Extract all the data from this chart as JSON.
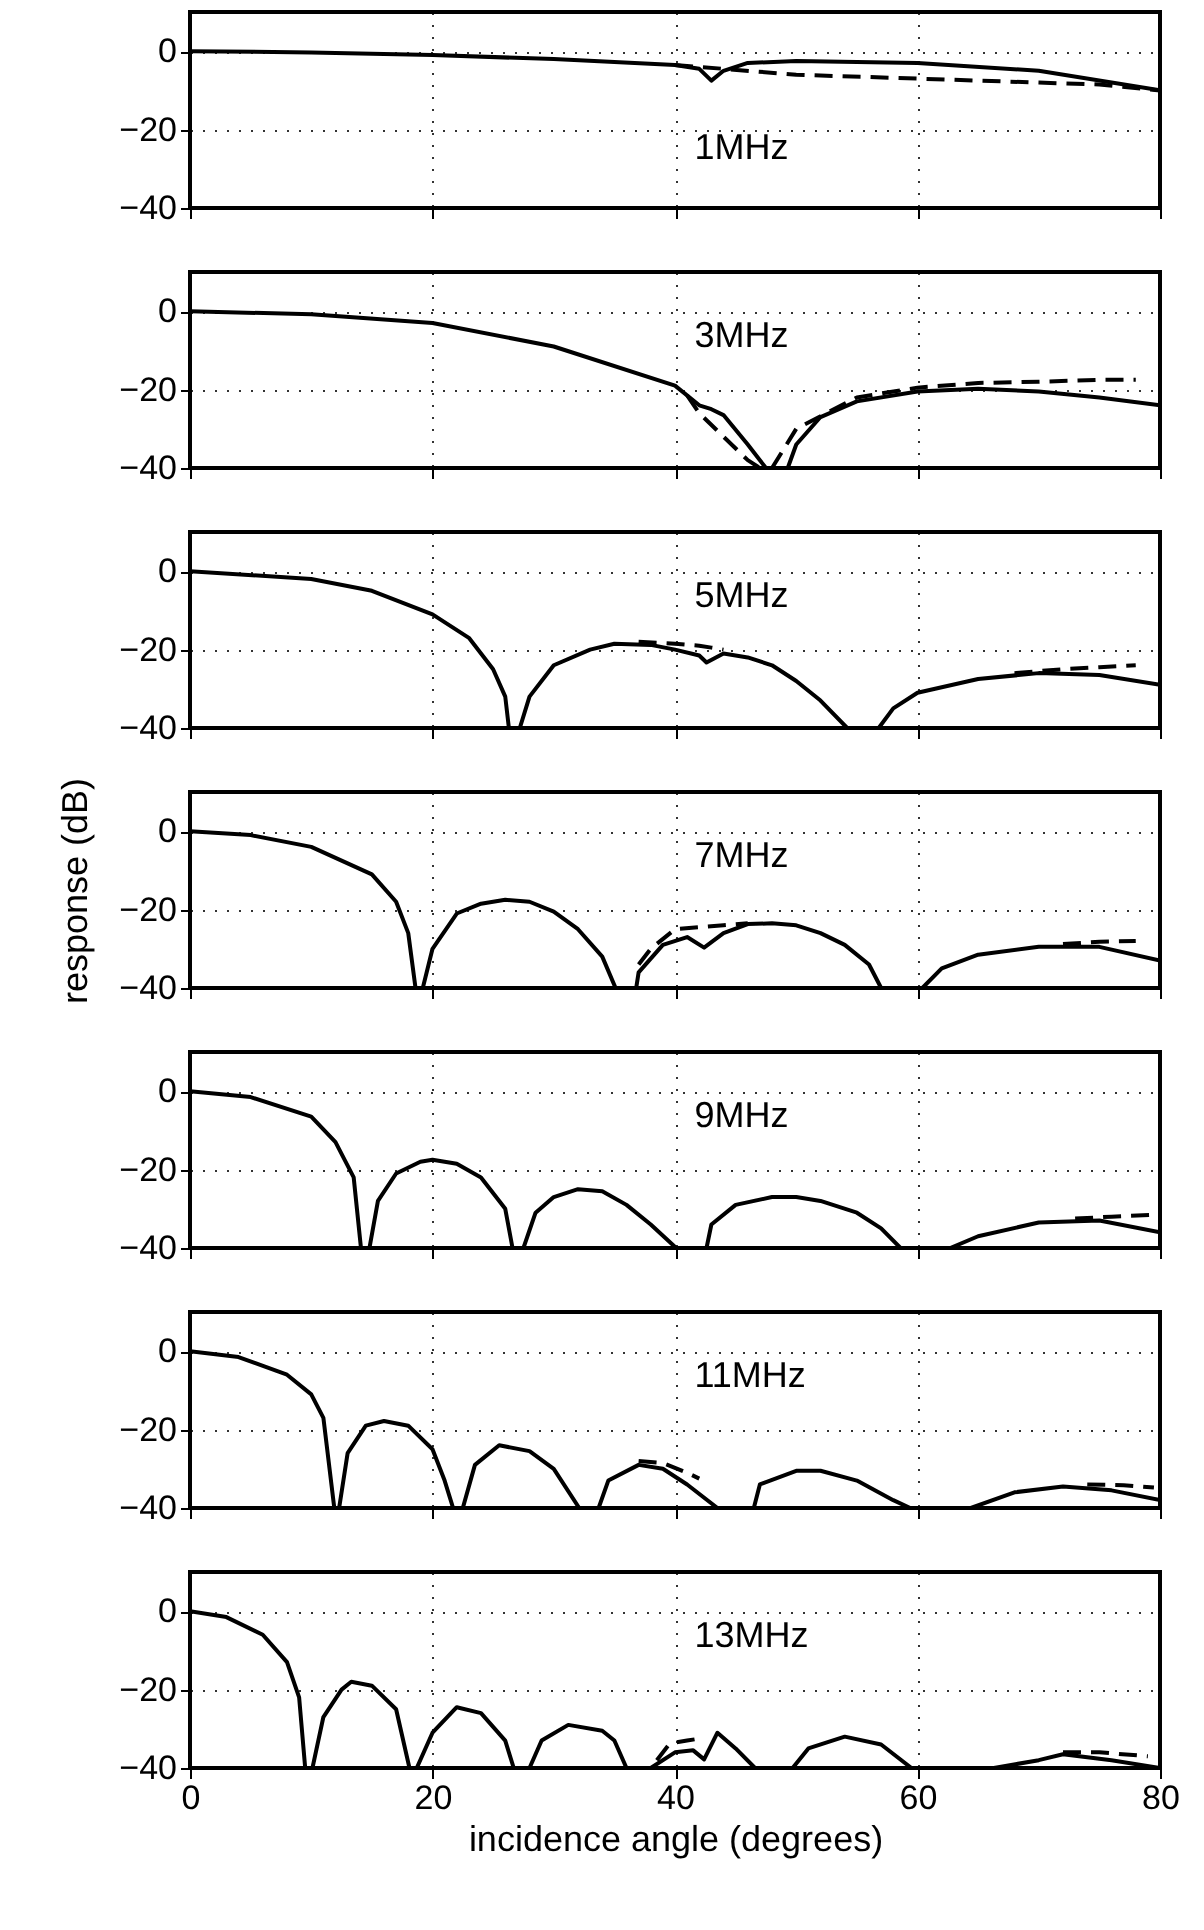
{
  "chart_data": [
    {
      "type": "line",
      "xlim": [
        0,
        80
      ],
      "xticks": [
        0,
        20,
        40,
        60,
        80
      ],
      "ylim": [
        -40,
        10
      ],
      "yticks": [
        -40,
        -20,
        0
      ],
      "grid": true,
      "tick_labels": "y",
      "annotations": [
        "1MHz"
      ],
      "series": [
        {
          "color": "#000000",
          "line_style": "solid",
          "x": [
            0,
            10,
            20,
            30,
            40,
            42,
            43,
            44,
            46,
            50,
            60,
            70,
            80
          ],
          "values": [
            0,
            -0.3,
            -1,
            -2,
            -3.5,
            -4.5,
            -7.5,
            -5,
            -3,
            -2.5,
            -3,
            -5,
            -10
          ]
        },
        {
          "color": "#000000",
          "line_style": "dashed",
          "x": [
            40,
            44,
            50,
            60,
            70,
            75,
            80
          ],
          "values": [
            -3.5,
            -4.5,
            -6,
            -7,
            -8,
            -8.5,
            -10
          ]
        }
      ]
    },
    {
      "type": "line",
      "xlim": [
        0,
        80
      ],
      "xticks": [
        0,
        20,
        40,
        60,
        80
      ],
      "ylim": [
        -40,
        10
      ],
      "yticks": [
        -40,
        -20,
        0
      ],
      "grid": true,
      "tick_labels": "y",
      "annotations": [
        "3MHz"
      ],
      "series": [
        {
          "color": "#000000",
          "line_style": "solid",
          "x": [
            0,
            10,
            20,
            30,
            40,
            42,
            43,
            44,
            46,
            47.5,
            48.5,
            49.3,
            50,
            52,
            55,
            60,
            65,
            70,
            75,
            80
          ],
          "values": [
            0,
            -0.8,
            -3,
            -9,
            -19,
            -24,
            -25,
            -26.5,
            -34,
            -40,
            null,
            -40,
            -34,
            -27,
            -23,
            -20.5,
            -19.8,
            -20.5,
            -22,
            -24
          ]
        },
        {
          "color": "#000000",
          "line_style": "dashed",
          "x": [
            41,
            42,
            44,
            46,
            47,
            47.5,
            48,
            50,
            55,
            60,
            65,
            70,
            75,
            78
          ],
          "values": [
            -21.5,
            -26,
            -32,
            -38,
            -40,
            null,
            -40,
            -30,
            -22,
            -19.5,
            -18.3,
            -18,
            -17.5,
            -17.5
          ]
        }
      ]
    },
    {
      "type": "line",
      "xlim": [
        0,
        80
      ],
      "xticks": [
        0,
        20,
        40,
        60,
        80
      ],
      "ylim": [
        -40,
        10
      ],
      "yticks": [
        -40,
        -20,
        0
      ],
      "grid": true,
      "tick_labels": "y",
      "annotations": [
        "5MHz"
      ],
      "series": [
        {
          "color": "#000000",
          "line_style": "solid",
          "x": [
            0,
            10,
            15,
            20,
            23,
            25,
            26,
            26.3,
            26.8,
            27.2,
            28,
            30,
            33,
            35,
            38,
            40,
            42,
            42.6,
            44,
            46,
            48,
            50,
            52,
            54.2,
            55.5,
            56.8,
            58,
            60,
            65,
            70,
            75,
            80
          ],
          "values": [
            0,
            -2,
            -5,
            -11,
            -17,
            -25,
            -32,
            -40,
            null,
            -40,
            -32,
            -24,
            -20,
            -18.5,
            -18.8,
            -20,
            -21.5,
            -23.3,
            -21,
            -22,
            -24,
            -28,
            -33,
            -40,
            null,
            -40,
            -35,
            -31,
            -27.5,
            -26,
            -26.5,
            -29
          ]
        },
        {
          "color": "#000000",
          "line_style": "dashed",
          "x": [
            37,
            40,
            42,
            43,
            44,
            55,
            68,
            72,
            75,
            78
          ],
          "values": [
            -18,
            -18.5,
            -19,
            -19.5,
            -20,
            null,
            -26,
            -25,
            -24.5,
            -24
          ]
        }
      ]
    },
    {
      "type": "line",
      "xlim": [
        0,
        80
      ],
      "xticks": [
        0,
        20,
        40,
        60,
        80
      ],
      "ylim": [
        -40,
        10
      ],
      "yticks": [
        -40,
        -20,
        0
      ],
      "grid": true,
      "tick_labels": "y",
      "ylabel": "response (dB)",
      "annotations": [
        "7MHz"
      ],
      "series": [
        {
          "color": "#000000",
          "line_style": "solid",
          "x": [
            0,
            5,
            10,
            15,
            17,
            18,
            18.6,
            18.9,
            19.2,
            20,
            22,
            24,
            26,
            28,
            30,
            32,
            34,
            35.1,
            36,
            36.8,
            37,
            39,
            41,
            42.4,
            44,
            46,
            48,
            50,
            52,
            54,
            56,
            57,
            58.7,
            60.4,
            62,
            65,
            70,
            75,
            80
          ],
          "values": [
            0,
            -1,
            -4,
            -11,
            -18,
            -26,
            -40,
            null,
            -40,
            -30,
            -21,
            -18.5,
            -17.5,
            -18,
            -20.5,
            -25,
            -32,
            -40,
            null,
            -40,
            -36,
            -29,
            -27,
            -29.7,
            -26,
            -23.7,
            -23.5,
            -24,
            -26,
            -29,
            -34,
            -40,
            null,
            -40,
            -35,
            -31.5,
            -29.5,
            -29.5,
            -33
          ]
        },
        {
          "color": "#000000",
          "line_style": "dashed",
          "x": [
            37,
            38,
            40,
            42,
            44,
            46,
            50,
            72,
            75,
            78
          ],
          "values": [
            -34,
            -30,
            -25,
            -24.5,
            -24,
            -23.5,
            null,
            -28.8,
            -28.2,
            -28
          ]
        }
      ]
    },
    {
      "type": "line",
      "xlim": [
        0,
        80
      ],
      "xticks": [
        0,
        20,
        40,
        60,
        80
      ],
      "ylim": [
        -40,
        10
      ],
      "yticks": [
        -40,
        -20,
        0
      ],
      "grid": true,
      "tick_labels": "y",
      "annotations": [
        "9MHz"
      ],
      "series": [
        {
          "color": "#000000",
          "line_style": "solid",
          "x": [
            0,
            5,
            10,
            12,
            13.5,
            14.1,
            14.5,
            14.8,
            15.5,
            17,
            19,
            20,
            22,
            24,
            26,
            26.6,
            27,
            27.5,
            28.5,
            30,
            32,
            34,
            36,
            38,
            40.1,
            41,
            42.6,
            43,
            45,
            48,
            50,
            52,
            55,
            57,
            58.6,
            60,
            62.7,
            65,
            70,
            75,
            80
          ],
          "values": [
            0,
            -1.5,
            -6.5,
            -13,
            -22,
            -40,
            null,
            -40,
            -28,
            -21,
            -18,
            -17.5,
            -18.5,
            -22,
            -30,
            -40,
            null,
            -40,
            -31,
            -27,
            -25,
            -25.5,
            -29,
            -34,
            -40,
            null,
            -40,
            -34,
            -29,
            -27,
            -27,
            -28,
            -31,
            -35,
            -40,
            null,
            -40,
            -37,
            -33.5,
            -33,
            -36
          ]
        },
        {
          "color": "#000000",
          "line_style": "dashed",
          "x": [
            73,
            76,
            80
          ],
          "values": [
            -32.5,
            -32,
            -31.5
          ]
        }
      ]
    },
    {
      "type": "line",
      "xlim": [
        0,
        80
      ],
      "xticks": [
        0,
        20,
        40,
        60,
        80
      ],
      "ylim": [
        -40,
        10
      ],
      "yticks": [
        -40,
        -20,
        0
      ],
      "grid": true,
      "tick_labels": "y",
      "annotations": [
        "11MHz"
      ],
      "series": [
        {
          "color": "#000000",
          "line_style": "solid",
          "x": [
            0,
            4,
            8,
            10,
            11,
            11.9,
            12.1,
            12.3,
            13,
            14.5,
            16,
            18,
            20,
            21,
            21.7,
            22.1,
            22.5,
            23.5,
            25.5,
            28,
            30,
            32.1,
            32.8,
            33.7,
            34.5,
            37,
            39,
            41,
            43.5,
            45,
            46.5,
            47,
            50,
            52,
            55,
            58,
            59.4,
            62,
            64.4,
            68,
            72,
            76,
            80
          ],
          "values": [
            0,
            -1.5,
            -6,
            -11,
            -17,
            -40,
            null,
            -40,
            -26,
            -19,
            -17.8,
            -19,
            -25,
            -33,
            -40,
            null,
            -40,
            -29,
            -24,
            -25.5,
            -30,
            -40,
            null,
            -40,
            -33,
            -29,
            -30,
            -34,
            -40,
            null,
            -40,
            -34,
            -30.5,
            -30.5,
            -33,
            -38,
            -40,
            null,
            -40,
            -36,
            -34.5,
            -35.5,
            -38
          ]
        },
        {
          "color": "#000000",
          "line_style": "dashed",
          "x": [
            37,
            39,
            41,
            42,
            55,
            74,
            77,
            79.5
          ],
          "values": [
            -28,
            -28.5,
            -31,
            -32.5,
            null,
            -34,
            -34.2,
            -34.8
          ]
        }
      ]
    },
    {
      "type": "line",
      "xlim": [
        0,
        80
      ],
      "xticks": [
        0,
        20,
        40,
        60,
        80
      ],
      "ylim": [
        -40,
        10
      ],
      "yticks": [
        -40,
        -20,
        0
      ],
      "grid": true,
      "xlabel": "incidence angle (degrees)",
      "annotations": [
        "13MHz"
      ],
      "series": [
        {
          "color": "#000000",
          "line_style": "solid",
          "x": [
            0,
            3,
            6,
            8,
            9,
            9.5,
            9.8,
            10.1,
            11,
            12.5,
            13.3,
            15,
            17,
            18.1,
            18.4,
            18.7,
            20,
            22,
            24,
            26,
            26.7,
            27.3,
            28,
            29,
            31.2,
            34,
            35,
            36,
            37,
            38,
            40,
            41.5,
            42.4,
            43.5,
            45,
            46.6,
            48,
            49.7,
            51,
            54,
            57,
            59.5,
            62,
            66.3,
            70,
            72,
            76,
            80
          ],
          "values": [
            0,
            -1.5,
            -6,
            -13,
            -22,
            -40,
            null,
            -40,
            -27,
            -20,
            -18,
            -19,
            -25,
            -40,
            null,
            -40,
            -31,
            -24.5,
            -26,
            -33,
            -40,
            null,
            -40,
            -33,
            -29,
            -30.5,
            -33,
            -40,
            null,
            -40,
            -36,
            -35.5,
            -37.8,
            -31,
            -35,
            -40,
            null,
            -40,
            -35,
            -32,
            -34,
            -40,
            null,
            -40,
            -38,
            -36.5,
            -38,
            -40
          ]
        },
        {
          "color": "#000000",
          "line_style": "dashed",
          "x": [
            38.5,
            39.5,
            40,
            41,
            42,
            55,
            72,
            75,
            79
          ],
          "values": [
            -38,
            -34,
            -33.5,
            -33,
            -32.5,
            null,
            -36,
            -36,
            -37
          ]
        }
      ]
    }
  ]
}
